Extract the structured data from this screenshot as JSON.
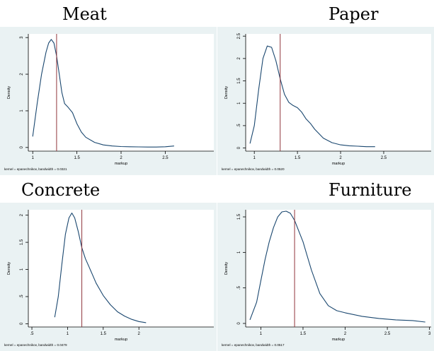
{
  "chart_data": [
    {
      "type": "line",
      "title": "Meat",
      "xlabel": "markup",
      "ylabel": "Density",
      "note": "kernel = epanechnikov, bandwidth = 0.0321",
      "xlim": [
        0.95,
        3.05
      ],
      "ylim": [
        -0.1,
        3.1
      ],
      "x_ticks": [
        {
          "v": 1,
          "t": "1"
        },
        {
          "v": 1.5,
          "t": "1.5"
        },
        {
          "v": 2,
          "t": "2"
        },
        {
          "v": 2.5,
          "t": "2.5"
        }
      ],
      "y_ticks": [
        {
          "v": 0,
          "t": "0"
        },
        {
          "v": 1,
          "t": "1"
        },
        {
          "v": 2,
          "t": "2"
        },
        {
          "v": 3,
          "t": "3"
        }
      ],
      "vline": 1.27,
      "series": [
        {
          "x": [
            1.0,
            1.05,
            1.1,
            1.15,
            1.18,
            1.21,
            1.24,
            1.27,
            1.3,
            1.33,
            1.36,
            1.4,
            1.45,
            1.5,
            1.55,
            1.6,
            1.7,
            1.8,
            1.9,
            2.0,
            2.1,
            2.2,
            2.3,
            2.4,
            2.5,
            2.6
          ],
          "y": [
            0.3,
            1.2,
            2.0,
            2.6,
            2.85,
            2.95,
            2.85,
            2.5,
            2.0,
            1.5,
            1.2,
            1.1,
            0.95,
            0.65,
            0.42,
            0.28,
            0.14,
            0.07,
            0.04,
            0.025,
            0.02,
            0.015,
            0.012,
            0.012,
            0.02,
            0.04
          ]
        }
      ]
    },
    {
      "type": "line",
      "title": "Paper",
      "xlabel": "markup",
      "ylabel": "Density",
      "note": "kernel = epanechnikov, bandwidth = 0.0520",
      "xlim": [
        0.9,
        3.05
      ],
      "ylim": [
        -0.07,
        2.55
      ],
      "x_ticks": [
        {
          "v": 1,
          "t": "1"
        },
        {
          "v": 1.5,
          "t": "1.5"
        },
        {
          "v": 2,
          "t": "2"
        },
        {
          "v": 2.5,
          "t": "2.5"
        }
      ],
      "y_ticks": [
        {
          "v": 0,
          "t": "0"
        },
        {
          "v": 0.5,
          "t": ".5"
        },
        {
          "v": 1,
          "t": "1"
        },
        {
          "v": 1.5,
          "t": "1.5"
        },
        {
          "v": 2,
          "t": "2"
        },
        {
          "v": 2.5,
          "t": "2.5"
        }
      ],
      "vline": 1.3,
      "series": [
        {
          "x": [
            0.95,
            1.0,
            1.05,
            1.1,
            1.15,
            1.2,
            1.25,
            1.3,
            1.35,
            1.4,
            1.45,
            1.5,
            1.55,
            1.6,
            1.65,
            1.7,
            1.8,
            1.9,
            2.0,
            2.1,
            2.2,
            2.3,
            2.4
          ],
          "y": [
            0.1,
            0.5,
            1.3,
            2.0,
            2.28,
            2.25,
            1.95,
            1.55,
            1.2,
            1.02,
            0.95,
            0.9,
            0.8,
            0.65,
            0.55,
            0.42,
            0.22,
            0.12,
            0.07,
            0.05,
            0.04,
            0.03,
            0.03
          ]
        }
      ]
    },
    {
      "type": "line",
      "title": "Concrete",
      "xlabel": "markup",
      "ylabel": "Density",
      "note": "kernel = epanechnikov, bandwidth = 0.0479",
      "xlim": [
        0.45,
        3.05
      ],
      "ylim": [
        -0.06,
        2.1
      ],
      "x_ticks": [
        {
          "v": 0.5,
          "t": ".5"
        },
        {
          "v": 1,
          "t": "1"
        },
        {
          "v": 1.5,
          "t": "1.5"
        },
        {
          "v": 2,
          "t": "2"
        }
      ],
      "y_ticks": [
        {
          "v": 0,
          "t": "0"
        },
        {
          "v": 0.5,
          "t": ".5"
        },
        {
          "v": 1,
          "t": "1"
        },
        {
          "v": 1.5,
          "t": "1.5"
        },
        {
          "v": 2,
          "t": "2"
        }
      ],
      "vline": 1.2,
      "series": [
        {
          "x": [
            0.82,
            0.87,
            0.92,
            0.97,
            1.02,
            1.06,
            1.1,
            1.15,
            1.2,
            1.25,
            1.3,
            1.35,
            1.4,
            1.5,
            1.6,
            1.7,
            1.8,
            1.9,
            2.0,
            2.1
          ],
          "y": [
            0.12,
            0.5,
            1.1,
            1.65,
            1.95,
            2.04,
            1.95,
            1.7,
            1.4,
            1.2,
            1.05,
            0.9,
            0.75,
            0.52,
            0.35,
            0.22,
            0.14,
            0.08,
            0.04,
            0.02
          ]
        }
      ]
    },
    {
      "type": "line",
      "title": "Furniture",
      "xlabel": "markup",
      "ylabel": "Density",
      "note": "kernel = epanechnikov, bandwidth = 0.0517",
      "xlim": [
        0.82,
        3.02
      ],
      "ylim": [
        -0.05,
        1.6
      ],
      "x_ticks": [
        {
          "v": 1,
          "t": "1"
        },
        {
          "v": 1.5,
          "t": "1.5"
        },
        {
          "v": 2,
          "t": "2"
        },
        {
          "v": 2.5,
          "t": "2.5"
        },
        {
          "v": 3,
          "t": "3"
        }
      ],
      "y_ticks": [
        {
          "v": 0,
          "t": "0"
        },
        {
          "v": 0.5,
          "t": ".5"
        },
        {
          "v": 1,
          "t": "1"
        },
        {
          "v": 1.5,
          "t": "1.5"
        }
      ],
      "vline": 1.4,
      "series": [
        {
          "x": [
            0.87,
            0.95,
            1.0,
            1.05,
            1.1,
            1.15,
            1.2,
            1.25,
            1.3,
            1.35,
            1.4,
            1.45,
            1.5,
            1.55,
            1.6,
            1.7,
            1.8,
            1.9,
            2.0,
            2.2,
            2.4,
            2.6,
            2.8,
            2.95
          ],
          "y": [
            0.05,
            0.3,
            0.6,
            0.9,
            1.15,
            1.35,
            1.5,
            1.57,
            1.58,
            1.55,
            1.45,
            1.3,
            1.15,
            0.95,
            0.75,
            0.42,
            0.25,
            0.18,
            0.15,
            0.1,
            0.07,
            0.05,
            0.04,
            0.02
          ]
        }
      ]
    }
  ],
  "colors": {
    "background": "#eaf2f3",
    "curve": "#1a476f",
    "vline": "#90353b",
    "axis": "#000000"
  }
}
